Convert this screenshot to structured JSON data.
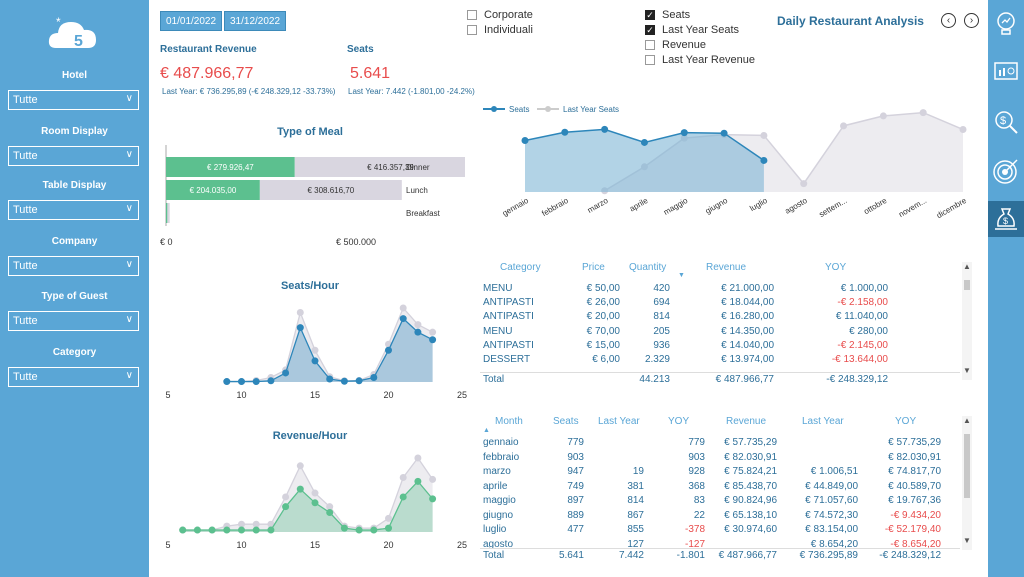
{
  "sidebar": {
    "filters": [
      {
        "label": "Hotel",
        "value": "Tutte"
      },
      {
        "label": "Room Display",
        "value": "Tutte"
      },
      {
        "label": "Table Display",
        "value": "Tutte"
      },
      {
        "label": "Company",
        "value": "Tutte"
      },
      {
        "label": "Type of Guest",
        "value": "Tutte"
      },
      {
        "label": "Category",
        "value": "Tutte"
      }
    ]
  },
  "header": {
    "date_from": "01/01/2022",
    "date_to": "31/12/2022",
    "guest_types": [
      {
        "label": "Corporate",
        "checked": false
      },
      {
        "label": "Individuali",
        "checked": false
      }
    ],
    "measures": [
      {
        "label": "Seats",
        "checked": true
      },
      {
        "label": "Last Year Seats",
        "checked": true
      },
      {
        "label": "Revenue",
        "checked": false
      },
      {
        "label": "Last Year Revenue",
        "checked": false
      }
    ],
    "title": "Daily Restaurant Analysis",
    "prev_icon": "chevron-left-icon",
    "next_icon": "chevron-right-icon"
  },
  "kpis": {
    "revenue": {
      "title": "Restaurant Revenue",
      "value": "€ 487.966,77",
      "sub": "Last Year: € 736.295,89 (-€ 248.329,12 -33.73%)"
    },
    "seats": {
      "title": "Seats",
      "value": "5.641",
      "sub": "Last Year: 7.442 (-1.801,00 -24.2%)"
    }
  },
  "right_bar": [
    "lightbulb-icon",
    "presentation-chart-icon",
    "money-search-icon",
    "target-icon",
    "money-bag-icon"
  ],
  "chart_data": [
    {
      "type": "bar",
      "title": "Type of Meal",
      "categories": [
        "Dinner",
        "Lunch",
        "Breakfast"
      ],
      "series": [
        {
          "values_label": [
            "€ 279.926,47",
            "€ 204.035,00",
            ""
          ],
          "values": [
            279926.47,
            204035.0,
            3000
          ]
        },
        {
          "values_label": [
            "€ 416.357,39",
            "€ 308.616,70",
            ""
          ],
          "values": [
            416357.39,
            308616.7,
            5000
          ]
        }
      ],
      "xticks": [
        "€ 0",
        "€ 500.000"
      ],
      "xlim": [
        0,
        500000
      ],
      "colors": [
        "#5cc08f",
        "#d9d6e0"
      ]
    },
    {
      "type": "area",
      "legend": [
        "Seats",
        "Last Year Seats"
      ],
      "categories": [
        "gennaio",
        "febbraio",
        "marzo",
        "aprile",
        "maggio",
        "giugno",
        "luglio",
        "agosto",
        "settem...",
        "ottobre",
        "novem...",
        "dicembre"
      ],
      "series": [
        {
          "name": "Seats",
          "values": [
            779,
            903,
            947,
            749,
            897,
            889,
            477,
            null,
            null,
            null,
            null,
            null
          ]
        },
        {
          "name": "Last Year Seats",
          "values": [
            null,
            null,
            19,
            381,
            814,
            867,
            855,
            127,
            1000,
            1150,
            1200,
            945
          ]
        }
      ],
      "ylim": [
        0,
        1300
      ],
      "colors": [
        "#2d86ba",
        "#d9d6e0"
      ]
    },
    {
      "type": "area",
      "title": "Seats/Hour",
      "x": [
        9,
        10,
        11,
        12,
        13,
        14,
        15,
        16,
        17,
        18,
        19,
        20,
        21,
        22,
        23
      ],
      "series": [
        {
          "name": "Seats",
          "values": [
            3,
            3,
            3,
            8,
            60,
            360,
            140,
            20,
            5,
            8,
            30,
            210,
            420,
            330,
            280
          ]
        },
        {
          "name": "Last Year Seats",
          "values": [
            3,
            3,
            10,
            30,
            80,
            460,
            210,
            35,
            8,
            10,
            50,
            250,
            490,
            380,
            330
          ]
        }
      ],
      "xticks": [
        5,
        10,
        15,
        20,
        25
      ],
      "xlim": [
        5,
        25
      ],
      "colors": [
        "#2d86ba",
        "#d9d6e0"
      ]
    },
    {
      "type": "area",
      "title": "Revenue/Hour",
      "x": [
        6,
        7,
        8,
        9,
        10,
        11,
        12,
        13,
        14,
        15,
        16,
        17,
        18,
        19,
        20,
        21,
        22,
        23
      ],
      "series": [
        {
          "name": "Revenue",
          "values": [
            100,
            100,
            100,
            100,
            100,
            100,
            100,
            1300,
            2200,
            1500,
            1000,
            200,
            100,
            100,
            200,
            1800,
            2600,
            1700
          ]
        },
        {
          "name": "Last Year Revenue",
          "values": [
            100,
            100,
            100,
            300,
            400,
            400,
            400,
            1800,
            3400,
            2000,
            1300,
            300,
            200,
            200,
            700,
            2800,
            3800,
            2700
          ]
        }
      ],
      "xticks": [
        5,
        10,
        15,
        20,
        25
      ],
      "xlim": [
        5,
        25
      ],
      "colors": [
        "#5cc08f",
        "#d9d6e0"
      ]
    }
  ],
  "category_table": {
    "headers": [
      "Category",
      "Price",
      "Quantity",
      "Revenue",
      "YOY"
    ],
    "rows": [
      {
        "category": "MENU",
        "price": "€ 50,00",
        "qty": "420",
        "revenue": "€ 21.000,00",
        "yoy": "€ 1.000,00",
        "neg": false
      },
      {
        "category": "ANTIPASTI",
        "price": "€ 26,00",
        "qty": "694",
        "revenue": "€ 18.044,00",
        "yoy": "-€ 2.158,00",
        "neg": true
      },
      {
        "category": "ANTIPASTI",
        "price": "€ 20,00",
        "qty": "814",
        "revenue": "€ 16.280,00",
        "yoy": "€ 11.040,00",
        "neg": false
      },
      {
        "category": "MENU",
        "price": "€ 70,00",
        "qty": "205",
        "revenue": "€ 14.350,00",
        "yoy": "€ 280,00",
        "neg": false
      },
      {
        "category": "ANTIPASTI",
        "price": "€ 15,00",
        "qty": "936",
        "revenue": "€ 14.040,00",
        "yoy": "-€ 2.145,00",
        "neg": true
      },
      {
        "category": "DESSERT",
        "price": "€ 6,00",
        "qty": "2.329",
        "revenue": "€ 13.974,00",
        "yoy": "-€ 13.644,00",
        "neg": true
      }
    ],
    "total": {
      "label": "Total",
      "qty": "44.213",
      "revenue": "€ 487.966,77",
      "yoy": "-€ 248.329,12"
    }
  },
  "month_table": {
    "headers": [
      "Month",
      "Seats",
      "Last Year",
      "YOY",
      "Revenue",
      "Last Year",
      "YOY"
    ],
    "rows": [
      {
        "month": "gennaio",
        "seats": "779",
        "ly": "",
        "yoy": "779",
        "rev": "€ 57.735,29",
        "lyrev": "",
        "yoyrev": "€ 57.735,29",
        "neg1": false,
        "neg2": false
      },
      {
        "month": "febbraio",
        "seats": "903",
        "ly": "",
        "yoy": "903",
        "rev": "€ 82.030,91",
        "lyrev": "",
        "yoyrev": "€ 82.030,91",
        "neg1": false,
        "neg2": false
      },
      {
        "month": "marzo",
        "seats": "947",
        "ly": "19",
        "yoy": "928",
        "rev": "€ 75.824,21",
        "lyrev": "€ 1.006,51",
        "yoyrev": "€ 74.817,70",
        "neg1": false,
        "neg2": false
      },
      {
        "month": "aprile",
        "seats": "749",
        "ly": "381",
        "yoy": "368",
        "rev": "€ 85.438,70",
        "lyrev": "€ 44.849,00",
        "yoyrev": "€ 40.589,70",
        "neg1": false,
        "neg2": false
      },
      {
        "month": "maggio",
        "seats": "897",
        "ly": "814",
        "yoy": "83",
        "rev": "€ 90.824,96",
        "lyrev": "€ 71.057,60",
        "yoyrev": "€ 19.767,36",
        "neg1": false,
        "neg2": false
      },
      {
        "month": "giugno",
        "seats": "889",
        "ly": "867",
        "yoy": "22",
        "rev": "€ 65.138,10",
        "lyrev": "€ 74.572,30",
        "yoyrev": "-€ 9.434,20",
        "neg1": false,
        "neg2": true
      },
      {
        "month": "luglio",
        "seats": "477",
        "ly": "855",
        "yoy": "-378",
        "rev": "€ 30.974,60",
        "lyrev": "€ 83.154,00",
        "yoyrev": "-€ 52.179,40",
        "neg1": true,
        "neg2": true
      },
      {
        "month": "agosto",
        "seats": "",
        "ly": "127",
        "yoy": "-127",
        "rev": "",
        "lyrev": "€ 8.654,20",
        "yoyrev": "-€ 8.654,20",
        "neg1": true,
        "neg2": true
      }
    ],
    "total": {
      "label": "Total",
      "seats": "5.641",
      "ly": "7.442",
      "yoy": "-1.801",
      "rev": "€ 487.966,77",
      "lyrev": "€ 736.295,89",
      "yoyrev": "-€ 248.329,12"
    }
  }
}
